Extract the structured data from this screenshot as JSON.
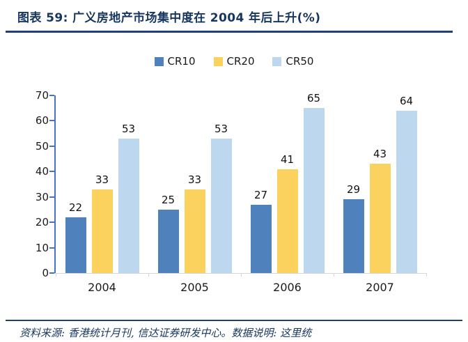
{
  "header": {
    "title": "图表 59: 广义房地产市场集中度在 2004 年后上升(%)"
  },
  "footer": {
    "source": "资料来源: 香港统计月刊, 信达证券研发中心。数据说明: 这里统"
  },
  "colors": {
    "navy_text": "#17365d",
    "rule_line": "#1f4077",
    "y_axis_line": "#4472c4",
    "x_axis_line": "#d6d6d6",
    "tick_label": "#1a1a1a"
  },
  "chart_data": {
    "type": "bar",
    "title": "",
    "categories": [
      "2004",
      "2005",
      "2006",
      "2007"
    ],
    "series": [
      {
        "name": "CR10",
        "color": "#4f81bd",
        "values": [
          22,
          25,
          27,
          29
        ]
      },
      {
        "name": "CR20",
        "color": "#fcd25f",
        "values": [
          33,
          33,
          41,
          43
        ]
      },
      {
        "name": "CR50",
        "color": "#bdd7ee",
        "values": [
          53,
          53,
          65,
          64
        ]
      }
    ],
    "xlabel": "",
    "ylabel": "",
    "ylim": [
      0,
      70
    ],
    "yticks": [
      0,
      10,
      20,
      30,
      40,
      50,
      60,
      70
    ],
    "grid": false,
    "legend_position": "top-center",
    "data_labels": true
  }
}
